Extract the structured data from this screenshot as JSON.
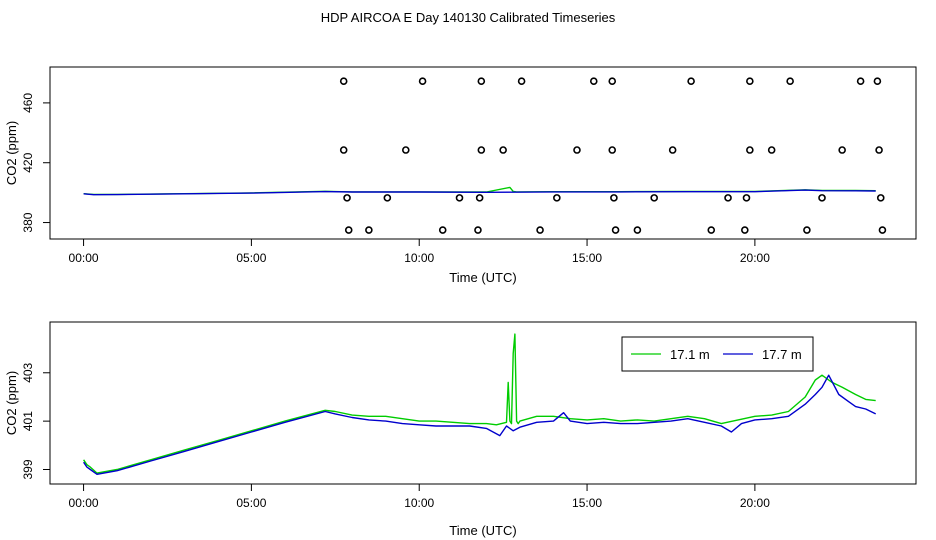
{
  "title": "HDP AIRCOA E  Day 140130  Calibrated Timeseries",
  "colors": {
    "green": "#00cc00",
    "blue": "#0000cc",
    "black": "#000000"
  },
  "chart_data": [
    {
      "type": "scatter",
      "xlabel": "Time (UTC)",
      "ylabel": "CO2 (ppm)",
      "xlim": [
        -1.0,
        24.8
      ],
      "ylim": [
        369,
        484
      ],
      "xticks": [
        0,
        5,
        10,
        15,
        20
      ],
      "xtick_labels": [
        "00:00",
        "05:00",
        "10:00",
        "15:00",
        "20:00"
      ],
      "yticks": [
        380,
        420,
        460
      ],
      "ytick_labels": [
        "380",
        "420",
        "460"
      ],
      "grid": false,
      "series": [
        {
          "style": "line",
          "color": "#00cc00",
          "x": [
            0.0,
            0.3,
            1.0,
            3.0,
            5.0,
            7.2,
            8.0,
            10.0,
            12.0,
            12.7,
            12.8,
            12.9,
            14.0,
            16.0,
            18.0,
            20.0,
            21.5,
            22.0,
            23.0,
            23.6
          ],
          "y": [
            399.3,
            398.8,
            398.8,
            399.3,
            399.8,
            400.9,
            400.5,
            400.5,
            400.4,
            403.5,
            400.8,
            400.5,
            400.6,
            400.6,
            400.8,
            400.8,
            401.9,
            401.5,
            401.4,
            401.3
          ]
        },
        {
          "style": "line",
          "color": "#0000cc",
          "x": [
            0.0,
            0.3,
            1.0,
            3.0,
            5.0,
            7.2,
            8.0,
            10.0,
            12.0,
            14.0,
            16.0,
            18.0,
            20.0,
            21.5,
            22.0,
            23.0,
            23.6
          ],
          "y": [
            399.2,
            398.6,
            398.7,
            399.2,
            399.7,
            400.7,
            400.4,
            400.4,
            400.2,
            400.5,
            400.5,
            400.6,
            400.6,
            401.7,
            401.3,
            401.2,
            401.1
          ]
        },
        {
          "style": "points",
          "color": "#000000",
          "x": [
            7.75,
            10.1,
            11.85,
            13.05,
            15.2,
            15.75,
            18.1,
            19.85,
            21.05,
            23.15,
            23.65,
            7.75,
            9.6,
            11.85,
            12.5,
            14.7,
            15.75,
            17.55,
            19.85,
            20.5,
            22.6,
            23.7,
            7.85,
            9.05,
            11.2,
            11.8,
            14.1,
            15.8,
            17.0,
            19.2,
            19.75,
            22.0,
            23.75,
            7.9,
            8.5,
            10.7,
            11.75,
            13.6,
            15.85,
            16.5,
            18.7,
            19.7,
            21.55,
            23.8
          ],
          "y": [
            474.5,
            474.5,
            474.5,
            474.5,
            474.5,
            474.5,
            474.5,
            474.5,
            474.5,
            474.5,
            474.5,
            428.5,
            428.5,
            428.5,
            428.5,
            428.5,
            428.5,
            428.5,
            428.5,
            428.5,
            428.5,
            428.5,
            396.5,
            396.5,
            396.5,
            396.5,
            396.5,
            396.5,
            396.5,
            396.5,
            396.5,
            396.5,
            396.5,
            375.0,
            375.0,
            375.0,
            375.0,
            375.0,
            375.0,
            375.0,
            375.0,
            375.0,
            375.0,
            375.0
          ]
        }
      ]
    },
    {
      "type": "line",
      "xlabel": "Time (UTC)",
      "ylabel": "CO2 (ppm)",
      "xlim": [
        -1.0,
        24.8
      ],
      "ylim": [
        398.4,
        405.1
      ],
      "xticks": [
        0,
        5,
        10,
        15,
        20
      ],
      "xtick_labels": [
        "00:00",
        "05:00",
        "10:00",
        "15:00",
        "20:00"
      ],
      "yticks": [
        399,
        401,
        403
      ],
      "ytick_labels": [
        "399",
        "401",
        "403"
      ],
      "grid": false,
      "legend_position": "top-right",
      "series": [
        {
          "name": "17.1 m",
          "color": "#00cc00",
          "x": [
            0.0,
            0.1,
            0.2,
            0.4,
            1.0,
            2.0,
            3.0,
            4.0,
            5.0,
            6.0,
            7.2,
            7.5,
            8.0,
            8.5,
            9.0,
            9.5,
            10.0,
            10.5,
            11.0,
            11.5,
            12.0,
            12.3,
            12.6,
            12.65,
            12.7,
            12.75,
            12.8,
            12.85,
            12.9,
            12.95,
            13.0,
            13.5,
            14.0,
            14.5,
            15.0,
            15.5,
            16.0,
            16.5,
            17.0,
            17.5,
            18.0,
            18.5,
            19.0,
            19.5,
            20.0,
            20.5,
            21.0,
            21.5,
            21.8,
            22.0,
            22.3,
            22.6,
            23.0,
            23.3,
            23.6
          ],
          "y": [
            399.4,
            399.2,
            399.1,
            398.85,
            399.0,
            399.4,
            399.8,
            400.2,
            400.6,
            401.0,
            401.45,
            401.4,
            401.25,
            401.2,
            401.2,
            401.1,
            401.0,
            401.0,
            400.95,
            400.9,
            400.9,
            400.85,
            400.95,
            402.6,
            401.0,
            400.9,
            403.8,
            404.6,
            401.0,
            400.9,
            401.0,
            401.2,
            401.2,
            401.1,
            401.05,
            401.1,
            401.0,
            401.05,
            401.0,
            401.1,
            401.2,
            401.1,
            400.9,
            401.05,
            401.2,
            401.25,
            401.4,
            402.0,
            402.7,
            402.9,
            402.6,
            402.4,
            402.1,
            401.9,
            401.85
          ]
        },
        {
          "name": "17.7 m",
          "color": "#0000cc",
          "x": [
            0.0,
            0.1,
            0.2,
            0.4,
            1.0,
            2.0,
            3.0,
            4.0,
            5.0,
            6.0,
            7.2,
            7.5,
            8.0,
            8.5,
            9.0,
            9.5,
            10.0,
            10.5,
            11.0,
            11.5,
            12.0,
            12.4,
            12.6,
            12.8,
            13.0,
            13.5,
            14.0,
            14.3,
            14.5,
            15.0,
            15.5,
            16.0,
            16.5,
            17.0,
            17.5,
            18.0,
            18.5,
            19.0,
            19.3,
            19.6,
            20.0,
            20.5,
            21.0,
            21.5,
            21.8,
            22.0,
            22.2,
            22.5,
            22.8,
            23.0,
            23.3,
            23.6
          ],
          "y": [
            399.3,
            399.1,
            399.0,
            398.8,
            398.95,
            399.35,
            399.75,
            400.15,
            400.55,
            400.95,
            401.4,
            401.3,
            401.15,
            401.05,
            401.0,
            400.9,
            400.85,
            400.8,
            400.8,
            400.8,
            400.7,
            400.4,
            400.8,
            400.6,
            400.75,
            400.95,
            401.0,
            401.35,
            401.0,
            400.9,
            400.95,
            400.9,
            400.9,
            400.95,
            401.0,
            401.1,
            400.95,
            400.8,
            400.55,
            400.9,
            401.05,
            401.1,
            401.2,
            401.7,
            402.1,
            402.4,
            402.9,
            402.1,
            401.8,
            401.6,
            401.5,
            401.3
          ]
        }
      ]
    }
  ]
}
